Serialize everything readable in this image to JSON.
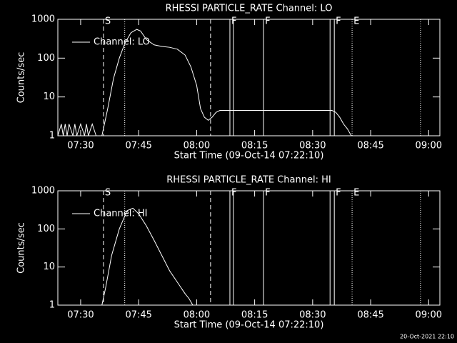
{
  "chart_data": [
    {
      "type": "line",
      "title": "RHESSI PARTICLE_RATE Channel: LO",
      "xlabel": "Start Time (09-Oct-14 07:22:10)",
      "ylabel": "Counts/sec",
      "x": [
        24.1,
        25,
        25.5,
        26,
        26.5,
        27,
        28,
        28.5,
        29,
        30,
        31,
        31.5,
        32,
        33,
        34,
        35.5,
        37,
        38.5,
        40,
        41.5,
        43,
        44.5,
        45.5,
        47,
        49,
        51,
        53,
        55,
        57,
        58.5,
        60,
        61,
        62,
        63,
        64,
        65,
        66,
        70,
        75,
        80,
        85,
        90,
        95,
        96,
        97,
        98,
        99,
        100,
        105,
        110,
        115
      ],
      "series": [
        {
          "name": "Channel: LO",
          "color": "#ffffff",
          "values": [
            1,
            2,
            1,
            2,
            1,
            2,
            1,
            2,
            1,
            2,
            1,
            2,
            1,
            2,
            1,
            1,
            5,
            30,
            100,
            250,
            450,
            550,
            500,
            300,
            220,
            200,
            190,
            170,
            120,
            60,
            20,
            5,
            3,
            2.5,
            3,
            4,
            4.5,
            4.5,
            4.5,
            4.5,
            4.5,
            4.5,
            4.5,
            4,
            3,
            2,
            1.5,
            1,
            1,
            1,
            1
          ]
        }
      ],
      "xlim": [
        24.1,
        122.9
      ],
      "ylim": [
        1,
        1000
      ],
      "log_y": true,
      "xticks": [
        {
          "value": 30,
          "label": "07:30"
        },
        {
          "value": 45,
          "label": "07:45"
        },
        {
          "value": 60,
          "label": "08:00"
        },
        {
          "value": 75,
          "label": "08:15"
        },
        {
          "value": 90,
          "label": "08:30"
        },
        {
          "value": 105,
          "label": "08:45"
        },
        {
          "value": 120,
          "label": "09:00"
        }
      ],
      "yticks": [
        1,
        10,
        100,
        1000
      ],
      "events": [
        {
          "x": 35.9,
          "style": "dashed",
          "label": "S"
        },
        {
          "x": 41.4,
          "style": "dotted"
        },
        {
          "x": 63.6,
          "style": "dashed"
        },
        {
          "x": 68.6,
          "style": "solid",
          "label": "F"
        },
        {
          "x": 69.5,
          "style": "solid"
        },
        {
          "x": 77.3,
          "style": "solid",
          "label": "F"
        },
        {
          "x": 94.5,
          "style": "solid"
        },
        {
          "x": 95.6,
          "style": "solid",
          "label": "F"
        },
        {
          "x": 100.2,
          "style": "dotted",
          "label": "E"
        },
        {
          "x": 117.9,
          "style": "dotted"
        }
      ]
    },
    {
      "type": "line",
      "title": "RHESSI PARTICLE_RATE Channel: HI",
      "xlabel": "Start Time (09-Oct-14 07:22:10)",
      "ylabel": "Counts/sec",
      "x": [
        35.5,
        36.5,
        38,
        40,
        42,
        43.5,
        45,
        47,
        49,
        51,
        53,
        55,
        57,
        58,
        59
      ],
      "series": [
        {
          "name": "Channel: HI",
          "color": "#ffffff",
          "values": [
            1,
            3,
            20,
            100,
            300,
            350,
            250,
            120,
            50,
            20,
            8,
            4,
            2,
            1.5,
            1
          ]
        }
      ],
      "xlim": [
        24.1,
        122.9
      ],
      "ylim": [
        1,
        1000
      ],
      "log_y": true,
      "xticks": [
        {
          "value": 30,
          "label": "07:30"
        },
        {
          "value": 45,
          "label": "07:45"
        },
        {
          "value": 60,
          "label": "08:00"
        },
        {
          "value": 75,
          "label": "08:15"
        },
        {
          "value": 90,
          "label": "08:30"
        },
        {
          "value": 105,
          "label": "08:45"
        },
        {
          "value": 120,
          "label": "09:00"
        }
      ],
      "yticks": [
        1,
        10,
        100,
        1000
      ],
      "events": [
        {
          "x": 35.9,
          "style": "dashed",
          "label": "S"
        },
        {
          "x": 41.4,
          "style": "dotted"
        },
        {
          "x": 63.6,
          "style": "dashed"
        },
        {
          "x": 68.6,
          "style": "solid",
          "label": "F"
        },
        {
          "x": 69.5,
          "style": "solid"
        },
        {
          "x": 77.3,
          "style": "solid",
          "label": "F"
        },
        {
          "x": 94.5,
          "style": "solid"
        },
        {
          "x": 95.6,
          "style": "solid",
          "label": "F"
        },
        {
          "x": 100.2,
          "style": "dotted",
          "label": "E"
        },
        {
          "x": 117.9,
          "style": "dotted"
        }
      ]
    }
  ],
  "footer": "20-Oct-2021 22:10"
}
